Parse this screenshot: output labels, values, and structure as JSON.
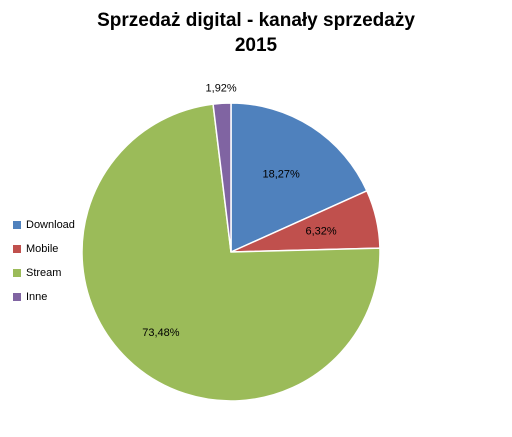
{
  "chart_data": {
    "type": "pie",
    "title": [
      "Sprzedaż digital - kanały sprzedaży",
      "2015"
    ],
    "categories": [
      "Download",
      "Mobile",
      "Stream",
      "Inne"
    ],
    "values": [
      18.27,
      6.32,
      73.48,
      1.92
    ],
    "value_labels": [
      "18,27%",
      "6,32%",
      "73,48%",
      "1,92%"
    ],
    "colors": [
      "#4F81BD",
      "#C0504D",
      "#9BBB59",
      "#8064A2"
    ],
    "start_angle": "top (12 o'clock), clockwise",
    "legend_position": "left"
  }
}
